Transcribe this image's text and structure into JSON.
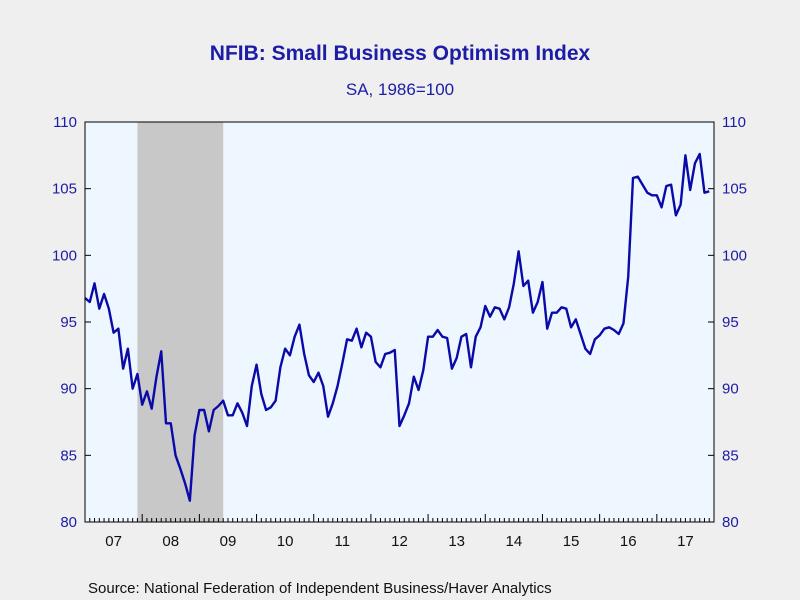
{
  "chart_data": {
    "type": "line",
    "title": "NFIB: Small Business Optimism Index",
    "subtitle": "SA, 1986=100",
    "source": "Source:  National Federation of Independent Business/Haver Analytics",
    "ylim": [
      80,
      110
    ],
    "yticks": [
      80,
      85,
      90,
      95,
      100,
      105,
      110
    ],
    "x_range": [
      "2007-01",
      "2018-01"
    ],
    "x_tick_labels": [
      "07",
      "08",
      "09",
      "10",
      "11",
      "12",
      "13",
      "14",
      "15",
      "16",
      "17"
    ],
    "grid": false,
    "recession": {
      "start": "2007-12",
      "end": "2009-06"
    },
    "colors": {
      "line": "#0a0aa8",
      "plot_bg": "#eef6ff",
      "recession": "#c8c8c8",
      "text": "#1c1ca6"
    },
    "series": [
      {
        "x": [
          "2007-01",
          "2007-02",
          "2007-03",
          "2007-04",
          "2007-05",
          "2007-06",
          "2007-07",
          "2007-08",
          "2007-09",
          "2007-10",
          "2007-11",
          "2007-12",
          "2008-01",
          "2008-02",
          "2008-03",
          "2008-04",
          "2008-05",
          "2008-06",
          "2008-07",
          "2008-08",
          "2008-09",
          "2008-10",
          "2008-11",
          "2008-12",
          "2009-01",
          "2009-02",
          "2009-03",
          "2009-04",
          "2009-05",
          "2009-06",
          "2009-07",
          "2009-08",
          "2009-09",
          "2009-10",
          "2009-11",
          "2009-12",
          "2010-01",
          "2010-02",
          "2010-03",
          "2010-04",
          "2010-05",
          "2010-06",
          "2010-07",
          "2010-08",
          "2010-09",
          "2010-10",
          "2010-11",
          "2010-12",
          "2011-01",
          "2011-02",
          "2011-03",
          "2011-04",
          "2011-05",
          "2011-06",
          "2011-07",
          "2011-08",
          "2011-09",
          "2011-10",
          "2011-11",
          "2011-12",
          "2012-01",
          "2012-02",
          "2012-03",
          "2012-04",
          "2012-05",
          "2012-06",
          "2012-07",
          "2012-08",
          "2012-09",
          "2012-10",
          "2012-11",
          "2012-12",
          "2013-01",
          "2013-02",
          "2013-03",
          "2013-04",
          "2013-05",
          "2013-06",
          "2013-07",
          "2013-08",
          "2013-09",
          "2013-10",
          "2013-11",
          "2013-12",
          "2014-01",
          "2014-02",
          "2014-03",
          "2014-04",
          "2014-05",
          "2014-06",
          "2014-07",
          "2014-08",
          "2014-09",
          "2014-10",
          "2014-11",
          "2014-12",
          "2015-01",
          "2015-02",
          "2015-03",
          "2015-04",
          "2015-05",
          "2015-06",
          "2015-07",
          "2015-08",
          "2015-09",
          "2015-10",
          "2015-11",
          "2015-12",
          "2016-01",
          "2016-02",
          "2016-03",
          "2016-04",
          "2016-05",
          "2016-06",
          "2016-07",
          "2016-08",
          "2016-09",
          "2016-10",
          "2016-11",
          "2016-12",
          "2017-01",
          "2017-02",
          "2017-03",
          "2017-04",
          "2017-05",
          "2017-06",
          "2017-07",
          "2017-08",
          "2017-09",
          "2017-10",
          "2017-11",
          "2017-12"
        ],
        "values": [
          96.8,
          96.5,
          97.9,
          96.0,
          97.1,
          96.0,
          94.2,
          94.5,
          91.5,
          93.0,
          90.0,
          91.1,
          88.8,
          89.8,
          88.5,
          90.9,
          92.8,
          87.4,
          87.4,
          85.0,
          84.0,
          82.9,
          81.6,
          86.5,
          88.4,
          88.4,
          86.8,
          88.4,
          88.7,
          89.1,
          88.0,
          88.0,
          88.9,
          88.2,
          87.2,
          90.2,
          91.8,
          89.6,
          88.4,
          88.6,
          89.1,
          91.6,
          93.0,
          92.5,
          93.9,
          94.8,
          92.6,
          91.0,
          90.5,
          91.2,
          90.2,
          87.9,
          88.9,
          90.2,
          91.9,
          93.7,
          93.6,
          94.5,
          93.1,
          94.2,
          93.9,
          92.0,
          91.6,
          92.6,
          92.7,
          92.9,
          87.2,
          88.0,
          88.9,
          90.9,
          89.9,
          91.4,
          93.9,
          93.9,
          94.4,
          93.9,
          93.8,
          91.5,
          92.3,
          93.9,
          94.1,
          91.6,
          93.9,
          94.6,
          96.2,
          95.4,
          96.1,
          96.0,
          95.2,
          96.1,
          97.9,
          100.3,
          97.7,
          98.1,
          95.7,
          96.5,
          98.0,
          94.5,
          95.7,
          95.7,
          96.1,
          96.0,
          94.6,
          95.2,
          94.1,
          93.0,
          92.6,
          93.7,
          94.0,
          94.5,
          94.6,
          94.4,
          94.1,
          94.9,
          98.4,
          105.8,
          105.9,
          105.3,
          104.7,
          104.5,
          104.5,
          103.6,
          105.2,
          105.3,
          103.0,
          103.8,
          107.5,
          104.9,
          106.9,
          107.6,
          104.7,
          104.8
        ]
      }
    ]
  }
}
